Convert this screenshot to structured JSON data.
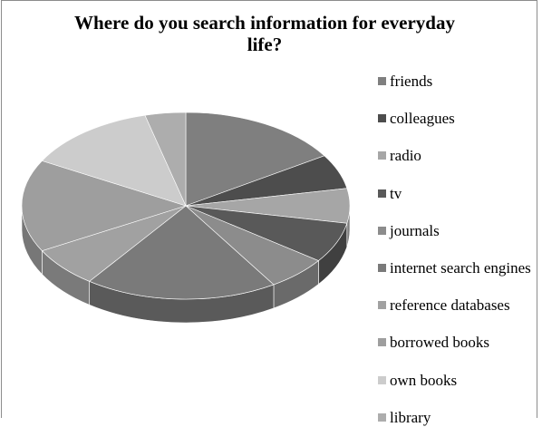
{
  "chart_data": {
    "type": "pie",
    "title": "Where do you search information for everyday life?",
    "title_line1": "Where do you search information for everyday",
    "title_line2": "life?",
    "style": "3d-exploded-grayscale",
    "legend_position": "right",
    "categories": [
      "friends",
      "colleagues",
      "radio",
      "tv",
      "journals",
      "internet search engines",
      "reference databases",
      "borrowed books",
      "own books",
      "library"
    ],
    "values": [
      16,
      6,
      6,
      7,
      6,
      19,
      7,
      16,
      13,
      4
    ],
    "colors": [
      "#7f7f7f",
      "#4d4d4d",
      "#a6a6a6",
      "#595959",
      "#8c8c8c",
      "#7a7a7a",
      "#a1a1a1",
      "#9e9e9e",
      "#cccccc",
      "#adadad"
    ],
    "side_colors": [
      "#5e5e5e",
      "#383838",
      "#7e7e7e",
      "#404040",
      "#6a6a6a",
      "#5a5a5a",
      "#7a7a7a",
      "#777777",
      "#a8a8a8",
      "#888888"
    ]
  }
}
